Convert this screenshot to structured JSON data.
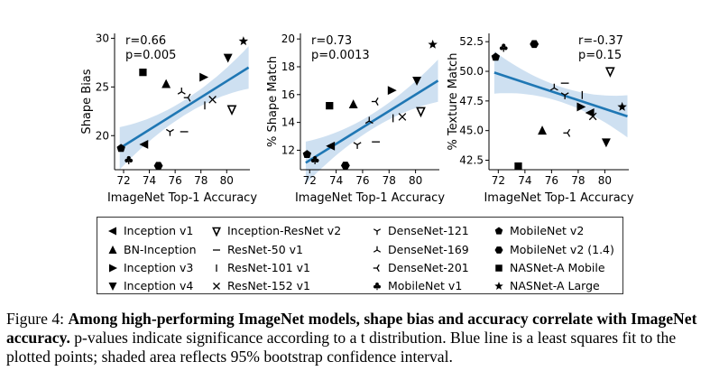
{
  "chart_data": [
    {
      "type": "scatter",
      "title": "",
      "xlabel": "ImageNet Top-1 Accuracy",
      "ylabel": "Shape Bias",
      "xlim": [
        71.3,
        81.8
      ],
      "ylim": [
        16.5,
        30.5
      ],
      "xticks": [
        72,
        74,
        76,
        78,
        80
      ],
      "yticks": [
        20,
        25,
        30
      ],
      "annotation": [
        "r=0.66",
        "p=0.005"
      ],
      "fit": {
        "x": [
          71.7,
          81.7
        ],
        "y": [
          18.7,
          27.0
        ]
      },
      "points": [
        {
          "model": "Inception v1",
          "x": 73.6,
          "y": 19.1
        },
        {
          "model": "BN-Inception",
          "x": 75.3,
          "y": 25.3
        },
        {
          "model": "Inception v3",
          "x": 78.2,
          "y": 26.0
        },
        {
          "model": "Inception v4",
          "x": 80.1,
          "y": 28.0
        },
        {
          "model": "Inception-ResNet v2",
          "x": 80.4,
          "y": 22.7
        },
        {
          "model": "ResNet-50 v1",
          "x": 76.7,
          "y": 20.4
        },
        {
          "model": "ResNet-101 v1",
          "x": 78.3,
          "y": 23.1
        },
        {
          "model": "ResNet-152 v1",
          "x": 78.9,
          "y": 23.7
        },
        {
          "model": "DenseNet-121",
          "x": 75.6,
          "y": 20.4
        },
        {
          "model": "DenseNet-169",
          "x": 76.5,
          "y": 24.5
        },
        {
          "model": "DenseNet-201",
          "x": 77.0,
          "y": 23.9
        },
        {
          "model": "MobileNet v1",
          "x": 72.4,
          "y": 17.5
        },
        {
          "model": "MobileNet v2",
          "x": 71.8,
          "y": 18.7
        },
        {
          "model": "MobileNet v2 (1.4)",
          "x": 74.7,
          "y": 16.9
        },
        {
          "model": "NASNet-A Mobile",
          "x": 73.5,
          "y": 26.5
        },
        {
          "model": "NASNet-A Large",
          "x": 81.3,
          "y": 29.7
        }
      ]
    },
    {
      "type": "scatter",
      "title": "",
      "xlabel": "ImageNet Top-1 Accuracy",
      "ylabel": "% Shape Match",
      "xlim": [
        71.3,
        81.8
      ],
      "ylim": [
        10.6,
        20.4
      ],
      "xticks": [
        72,
        74,
        76,
        78,
        80
      ],
      "yticks": [
        12,
        14,
        16,
        18,
        20
      ],
      "annotation": [
        "r=0.73",
        "p=0.0013"
      ],
      "fit": {
        "x": [
          71.7,
          81.7
        ],
        "y": [
          11.1,
          17.0
        ]
      },
      "points": [
        {
          "model": "Inception v1",
          "x": 73.6,
          "y": 12.3
        },
        {
          "model": "BN-Inception",
          "x": 75.3,
          "y": 15.3
        },
        {
          "model": "Inception v3",
          "x": 78.2,
          "y": 16.3
        },
        {
          "model": "Inception v4",
          "x": 80.1,
          "y": 17.0
        },
        {
          "model": "Inception-ResNet v2",
          "x": 80.4,
          "y": 14.8
        },
        {
          "model": "ResNet-50 v1",
          "x": 77.0,
          "y": 12.6
        },
        {
          "model": "ResNet-101 v1",
          "x": 78.3,
          "y": 14.3
        },
        {
          "model": "ResNet-152 v1",
          "x": 79.0,
          "y": 14.4
        },
        {
          "model": "DenseNet-121",
          "x": 75.6,
          "y": 12.4
        },
        {
          "model": "DenseNet-169",
          "x": 76.5,
          "y": 14.1
        },
        {
          "model": "DenseNet-201",
          "x": 77.0,
          "y": 15.5
        },
        {
          "model": "MobileNet v1",
          "x": 72.4,
          "y": 11.3
        },
        {
          "model": "MobileNet v2",
          "x": 71.8,
          "y": 11.7
        },
        {
          "model": "MobileNet v2 (1.4)",
          "x": 74.7,
          "y": 10.9
        },
        {
          "model": "NASNet-A Mobile",
          "x": 73.5,
          "y": 15.2
        },
        {
          "model": "NASNet-A Large",
          "x": 81.3,
          "y": 19.6
        }
      ]
    },
    {
      "type": "scatter",
      "title": "",
      "xlabel": "ImageNet Top-1 Accuracy",
      "ylabel": "% Texture Match",
      "xlim": [
        71.3,
        81.8
      ],
      "ylim": [
        41.7,
        53.2
      ],
      "xticks": [
        72,
        74,
        76,
        78,
        80
      ],
      "yticks": [
        42.5,
        45.0,
        47.5,
        50.0,
        52.5
      ],
      "annotation": [
        "r=-0.37",
        "p=0.15"
      ],
      "fit": {
        "x": [
          71.7,
          81.7
        ],
        "y": [
          49.9,
          46.2
        ]
      },
      "points": [
        {
          "model": "Inception v1",
          "x": 78.9,
          "y": 46.5
        },
        {
          "model": "BN-Inception",
          "x": 75.3,
          "y": 45.0
        },
        {
          "model": "Inception v3",
          "x": 78.2,
          "y": 47.0
        },
        {
          "model": "Inception v4",
          "x": 80.1,
          "y": 44.0
        },
        {
          "model": "Inception-ResNet v2",
          "x": 80.4,
          "y": 50.0
        },
        {
          "model": "ResNet-50 v1",
          "x": 77.0,
          "y": 49.0
        },
        {
          "model": "ResNet-101 v1",
          "x": 78.3,
          "y": 48.0
        },
        {
          "model": "ResNet-152 v1",
          "x": 79.1,
          "y": 46.2
        },
        {
          "model": "DenseNet-121",
          "x": 77.0,
          "y": 48.0
        },
        {
          "model": "DenseNet-169",
          "x": 76.2,
          "y": 48.6
        },
        {
          "model": "DenseNet-201",
          "x": 77.2,
          "y": 44.8
        },
        {
          "model": "MobileNet v1",
          "x": 72.4,
          "y": 52.0
        },
        {
          "model": "MobileNet v2",
          "x": 71.8,
          "y": 51.2
        },
        {
          "model": "MobileNet v2 (1.4)",
          "x": 74.7,
          "y": 52.3
        },
        {
          "model": "NASNet-A Mobile",
          "x": 73.5,
          "y": 42.0
        },
        {
          "model": "NASNet-A Large",
          "x": 81.3,
          "y": 47.0
        }
      ]
    }
  ],
  "legend": [
    {
      "label": "Inception v1",
      "marker": "triangle-left"
    },
    {
      "label": "BN-Inception",
      "marker": "triangle-up"
    },
    {
      "label": "Inception v3",
      "marker": "triangle-right"
    },
    {
      "label": "Inception v4",
      "marker": "triangle-down"
    },
    {
      "label": "Inception-ResNet v2",
      "marker": "triangle-down-open"
    },
    {
      "label": "ResNet-50 v1",
      "marker": "hline"
    },
    {
      "label": "ResNet-101 v1",
      "marker": "vline"
    },
    {
      "label": "ResNet-152 v1",
      "marker": "x"
    },
    {
      "label": "DenseNet-121",
      "marker": "tri-down"
    },
    {
      "label": "DenseNet-169",
      "marker": "tri-up"
    },
    {
      "label": "DenseNet-201",
      "marker": "tri-left"
    },
    {
      "label": "MobileNet v1",
      "marker": "club"
    },
    {
      "label": "MobileNet v2",
      "marker": "pentagon"
    },
    {
      "label": "MobileNet v2 (1.4)",
      "marker": "hexagon"
    },
    {
      "label": "NASNet-A Mobile",
      "marker": "square"
    },
    {
      "label": "NASNet-A Large",
      "marker": "star"
    }
  ],
  "colors": {
    "fit_line": "#1f77b4",
    "ci_band": "#c6dbef",
    "marker": "#000000"
  },
  "caption": {
    "figure_label": "Figure 4:",
    "bold_text": "Among high-performing ImageNet models, shape bias and accuracy correlate with ImageNet accuracy.",
    "rest_text": "p-values indicate significance according to a t distribution. Blue line is a least squares fit to the plotted points; shaded area reflects 95% bootstrap confidence interval."
  }
}
